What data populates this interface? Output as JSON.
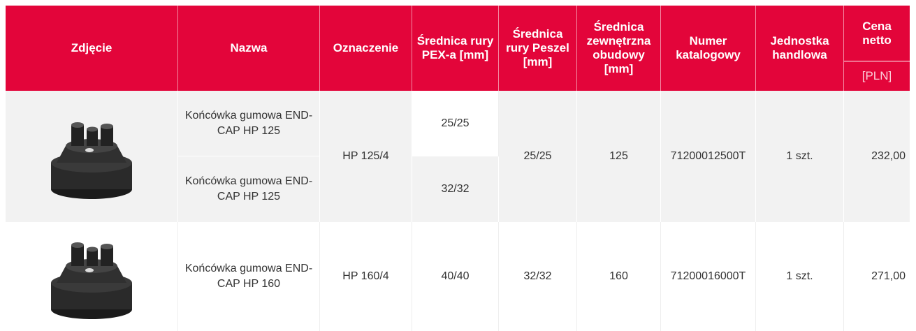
{
  "header": {
    "columns": [
      "Zdjęcie",
      "Nazwa",
      "Oznaczenie",
      "Średnica rury PEX-a [mm]",
      "Średnica rury Peszel [mm]",
      "Średnica zewnętrzna obudowy [mm]",
      "Numer katalogowy",
      "Jednostka handlowa",
      "Cena netto"
    ],
    "price_unit": "[PLN]"
  },
  "rows": [
    {
      "variants": [
        {
          "name": "Końcówka gumowa END-CAP HP 125",
          "pex": "25/25"
        },
        {
          "name": "Końcówka gumowa END-CAP HP 125",
          "pex": "32/32"
        }
      ],
      "designation": "HP 125/4",
      "peszel": "25/25",
      "housing": "125",
      "catalog": "71200012500T",
      "unit": "1 szt.",
      "price": "232,00"
    },
    {
      "variants": [
        {
          "name": "Końcówka gumowa END-CAP HP 160",
          "pex": "40/40"
        }
      ],
      "designation": "HP 160/4",
      "peszel": "32/32",
      "housing": "160",
      "catalog": "71200016000T",
      "unit": "1 szt.",
      "price": "271,00"
    }
  ]
}
